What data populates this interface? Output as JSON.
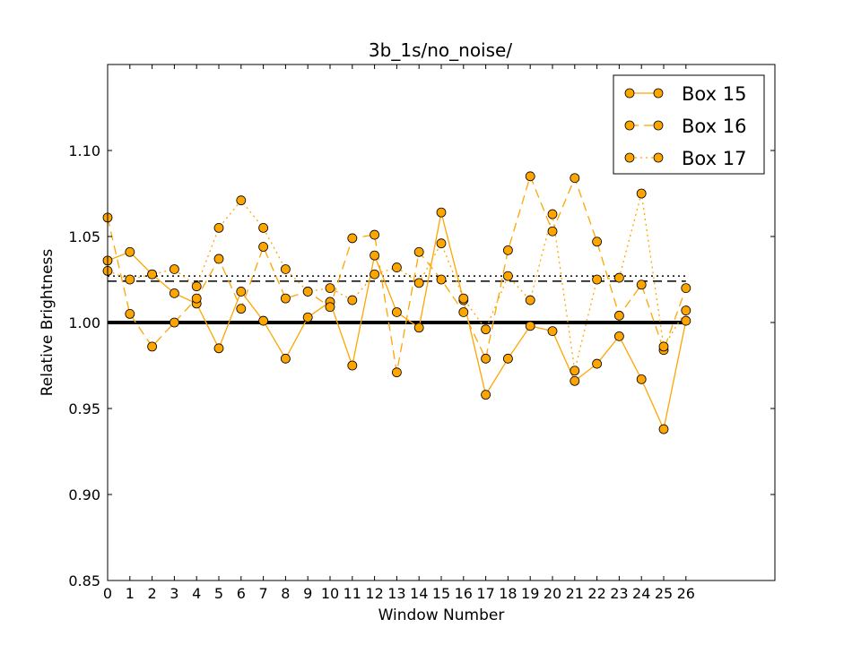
{
  "chart_data": {
    "type": "line",
    "title": "3b_1s/no_noise/",
    "xlabel": "Window Number",
    "ylabel": "Relative Brightness",
    "xlim": [
      0,
      30
    ],
    "ylim": [
      0.85,
      1.15
    ],
    "x_ticks": [
      "0",
      "1",
      "2",
      "3",
      "4",
      "5",
      "6",
      "7",
      "8",
      "9",
      "10",
      "11",
      "12",
      "13",
      "14",
      "15",
      "16",
      "17",
      "18",
      "19",
      "20",
      "21",
      "22",
      "23",
      "24",
      "25",
      "26"
    ],
    "y_ticks": [
      "0.85",
      "0.90",
      "0.95",
      "1.00",
      "1.05",
      "1.10"
    ],
    "grid": false,
    "legend_position": "top-right",
    "marker_color": "#ffa500",
    "line_color": "#ffa500",
    "series": [
      {
        "name": "Box 15",
        "line_style": "solid",
        "x": [
          0,
          1,
          2,
          3,
          4,
          5,
          6,
          7,
          8,
          9,
          10,
          11,
          12,
          13,
          14,
          15,
          16,
          17,
          18,
          19,
          20,
          21,
          22,
          23,
          24,
          25,
          26
        ],
        "values": [
          1.036,
          1.041,
          1.028,
          1.017,
          1.011,
          0.985,
          1.018,
          1.001,
          0.979,
          1.003,
          1.012,
          0.975,
          1.039,
          1.006,
          0.997,
          1.064,
          1.013,
          0.958,
          0.979,
          0.998,
          0.995,
          0.966,
          0.976,
          0.992,
          0.967,
          0.938,
          1.001
        ]
      },
      {
        "name": "Box 16",
        "line_style": "dashed",
        "x": [
          0,
          1,
          2,
          3,
          4,
          5,
          6,
          7,
          8,
          9,
          10,
          11,
          12,
          13,
          14,
          15,
          16,
          17,
          18,
          19,
          20,
          21,
          22,
          23,
          24,
          25,
          26
        ],
        "values": [
          1.061,
          1.005,
          0.986,
          1.0,
          1.014,
          1.037,
          1.008,
          1.044,
          1.014,
          1.018,
          1.009,
          1.049,
          1.051,
          0.971,
          1.041,
          1.025,
          1.006,
          0.979,
          1.042,
          1.085,
          1.053,
          1.084,
          1.047,
          1.004,
          1.022,
          0.984,
          1.02
        ]
      },
      {
        "name": "Box 17",
        "line_style": "dotted",
        "x": [
          0,
          1,
          2,
          3,
          4,
          5,
          6,
          7,
          8,
          9,
          10,
          11,
          12,
          13,
          14,
          15,
          16,
          17,
          18,
          19,
          20,
          21,
          22,
          23,
          24,
          25,
          26
        ],
        "values": [
          1.03,
          1.025,
          1.028,
          1.031,
          1.021,
          1.055,
          1.071,
          1.055,
          1.031,
          1.018,
          1.02,
          1.013,
          1.028,
          1.032,
          1.023,
          1.046,
          1.014,
          0.996,
          1.027,
          1.013,
          1.063,
          0.972,
          1.025,
          1.026,
          1.075,
          0.986,
          1.007
        ]
      }
    ],
    "reference_lines": [
      {
        "style": "solid",
        "y": 1.0,
        "x_range": [
          0,
          26
        ]
      },
      {
        "style": "dashed",
        "y": 1.024,
        "x_range": [
          0,
          26
        ]
      },
      {
        "style": "dotted",
        "y": 1.027,
        "x_range": [
          0,
          26
        ]
      }
    ]
  }
}
